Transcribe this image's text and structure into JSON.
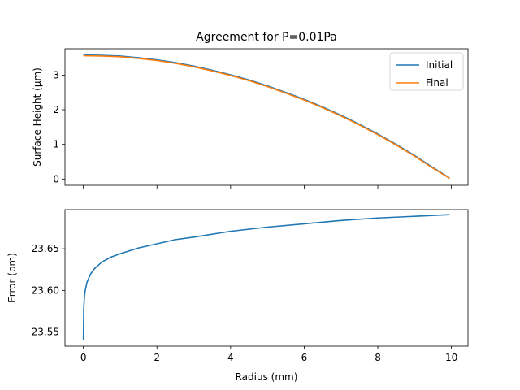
{
  "chart_data": [
    {
      "type": "line",
      "title": "Agreement for P=0.01Pa",
      "xlabel": "",
      "ylabel": "Surface Height (μm)",
      "xlim": [
        -0.5,
        10.45
      ],
      "ylim": [
        -0.18,
        3.76
      ],
      "xticks": [
        0,
        2,
        4,
        6,
        8,
        10
      ],
      "xtick_labels_visible": false,
      "yticks": [
        0,
        1,
        2,
        3
      ],
      "ytick_labels": [
        "0",
        "1",
        "2",
        "3"
      ],
      "legend": {
        "position": "top-right",
        "entries": [
          "Initial",
          "Final"
        ]
      },
      "grid": false,
      "series": [
        {
          "name": "Initial",
          "color": "#1f77b4",
          "x": [
            0,
            0.5,
            1,
            1.5,
            2,
            2.5,
            3,
            3.5,
            4,
            4.5,
            5,
            5.5,
            6,
            6.5,
            7,
            7.5,
            8,
            8.5,
            9,
            9.5,
            9.95
          ],
          "y": [
            3.58,
            3.57,
            3.55,
            3.5,
            3.44,
            3.36,
            3.26,
            3.14,
            3.01,
            2.86,
            2.69,
            2.5,
            2.3,
            2.08,
            1.84,
            1.58,
            1.3,
            1.0,
            0.68,
            0.33,
            0.03
          ]
        },
        {
          "name": "Final",
          "color": "#ff7f0e",
          "x": [
            0,
            0.5,
            1,
            1.5,
            2,
            2.5,
            3,
            3.5,
            4,
            4.5,
            5,
            5.5,
            6,
            6.5,
            7,
            7.5,
            8,
            8.5,
            9,
            9.5,
            9.95
          ],
          "y": [
            3.56,
            3.55,
            3.53,
            3.48,
            3.42,
            3.34,
            3.24,
            3.12,
            2.99,
            2.84,
            2.67,
            2.48,
            2.28,
            2.06,
            1.82,
            1.56,
            1.28,
            0.98,
            0.66,
            0.31,
            0.02
          ]
        }
      ]
    },
    {
      "type": "line",
      "title": "",
      "xlabel": "Radius (mm)",
      "ylabel": "Error (pm)",
      "xlim": [
        -0.5,
        10.45
      ],
      "ylim": [
        23.533,
        23.697
      ],
      "xticks": [
        0,
        2,
        4,
        6,
        8,
        10
      ],
      "xtick_labels": [
        "0",
        "2",
        "4",
        "6",
        "8",
        "10"
      ],
      "yticks": [
        23.55,
        23.6,
        23.65
      ],
      "ytick_labels": [
        "23.55",
        "23.60",
        "23.65"
      ],
      "grid": false,
      "series": [
        {
          "color": "#1f77b4",
          "x": [
            0,
            0.01,
            0.03,
            0.05,
            0.1,
            0.2,
            0.3,
            0.5,
            0.75,
            1,
            1.5,
            2,
            2.5,
            3,
            4,
            5,
            6,
            7,
            8,
            9,
            9.95
          ],
          "y": [
            23.54,
            23.578,
            23.593,
            23.6,
            23.61,
            23.62,
            23.626,
            23.634,
            23.64,
            23.644,
            23.651,
            23.656,
            23.661,
            23.664,
            23.671,
            23.676,
            23.68,
            23.684,
            23.687,
            23.689,
            23.691
          ]
        }
      ]
    }
  ]
}
